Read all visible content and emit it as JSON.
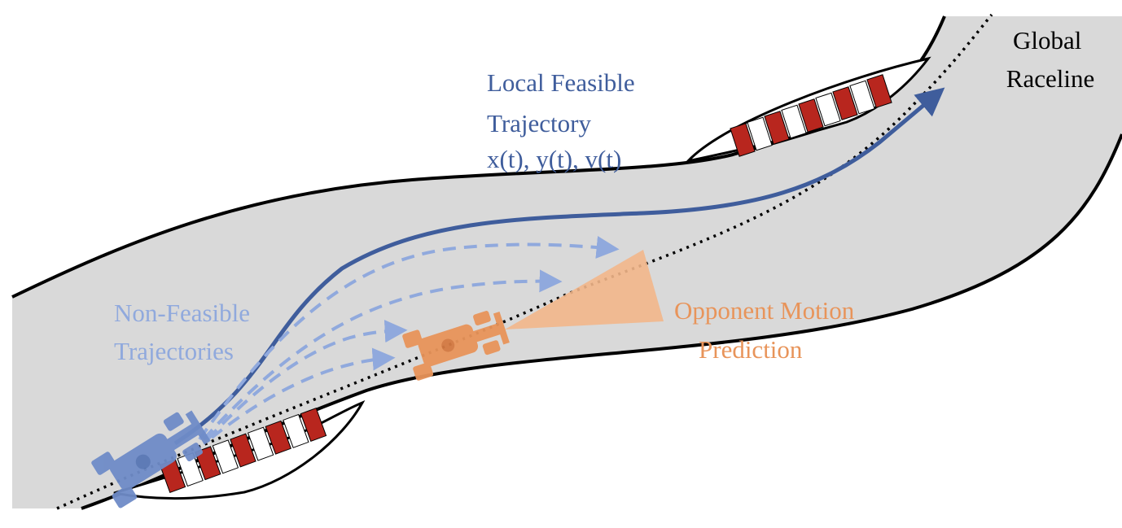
{
  "labels": {
    "global_raceline": [
      "Global",
      "Raceline"
    ],
    "local_feasible": [
      "Local Feasible",
      "Trajectory",
      "x(t), y(t), v(t)"
    ],
    "non_feasible": [
      "Non-Feasible",
      "Trajectories"
    ],
    "opponent": [
      "Opponent Motion",
      "Prediction"
    ]
  },
  "colors": {
    "track": "#d9d9d9",
    "border": "#000000",
    "kerb_red": "#b8261e",
    "kerb_white": "#ffffff",
    "ego": "#3f5d9c",
    "non_feasible": "#90a9dd",
    "opponent": "#e8945a",
    "prediction_cone": "#f2b68a",
    "ego_car": "#6f8cc8"
  }
}
